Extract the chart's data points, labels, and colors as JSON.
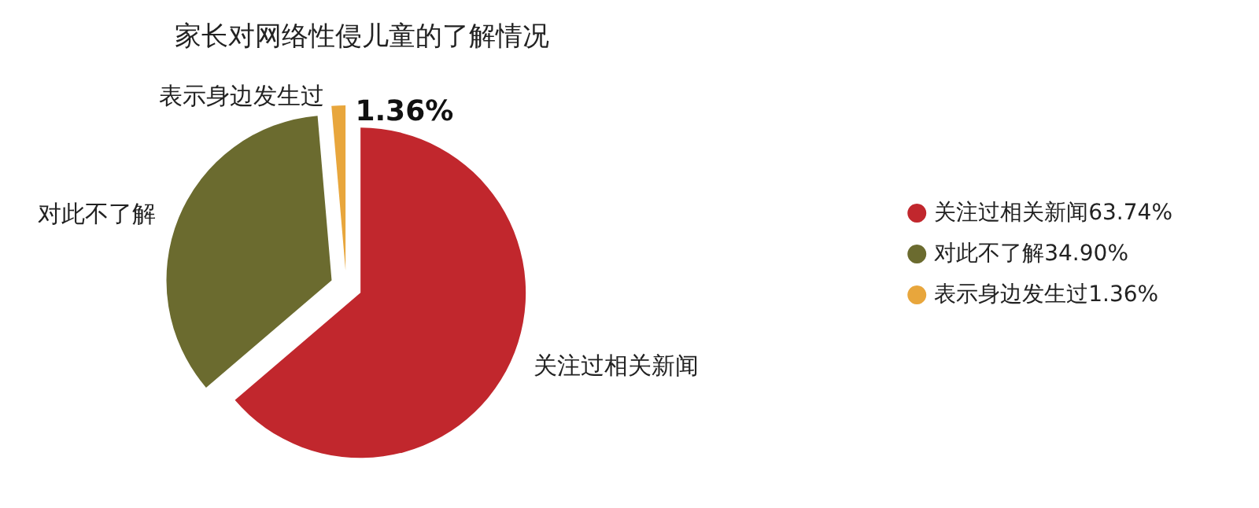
{
  "chart_data": {
    "type": "pie",
    "title": "家长对网络性侵儿童的了解情况",
    "categories": [
      "关注过相关新闻",
      "对此不了解",
      "表示身边发生过"
    ],
    "values": [
      63.74,
      34.9,
      1.36
    ],
    "colors": [
      "#c1272d",
      "#6b6b2f",
      "#e8a63c"
    ],
    "value_labels": [
      "63.74%",
      "34.90%",
      "1.36%"
    ],
    "legend": "right"
  }
}
